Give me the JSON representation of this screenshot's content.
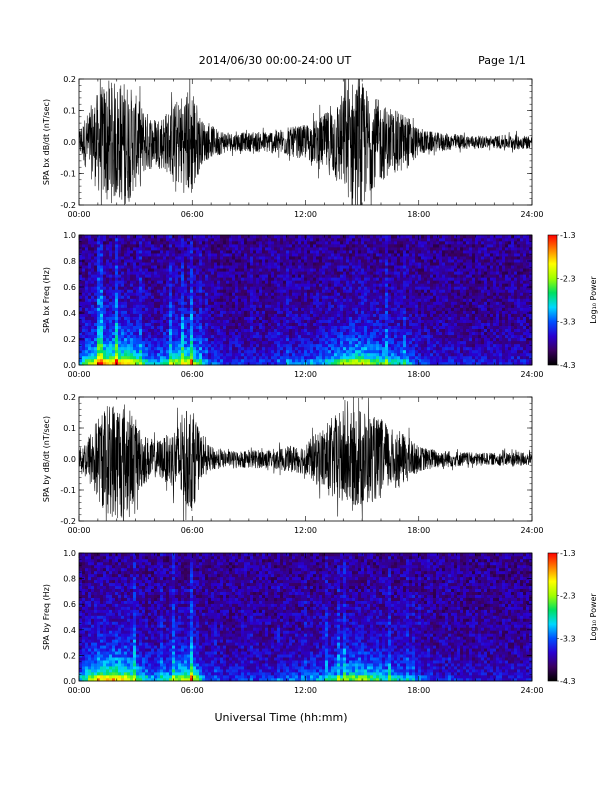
{
  "header": {
    "date_range": "2014/06/30  00:00-24:00 UT",
    "page": "Page 1/1"
  },
  "footer": {
    "xlabel": "Universal Time (hh:mm)"
  },
  "chart_data": [
    {
      "type": "line",
      "ylabel": "SPA bx dB/dt (nT/sec)",
      "xlim": [
        0,
        24
      ],
      "ylim": [
        -0.2,
        0.2
      ],
      "x_ticks": [
        "00:00",
        "06:00",
        "12:00",
        "18:00",
        "24:00"
      ],
      "y_ticks": [
        "-0.2",
        "-0.1",
        "0.0",
        "0.1",
        "0.2"
      ],
      "envelope": {
        "x": [
          0,
          0.5,
          1,
          1.5,
          2,
          2.5,
          3,
          3.5,
          4,
          4.5,
          5,
          5.5,
          6,
          6.5,
          7,
          7.5,
          8,
          9,
          10,
          11,
          12,
          12.5,
          13,
          13.5,
          14,
          14.5,
          15,
          15.5,
          16,
          16.5,
          17,
          17.5,
          18,
          19,
          20,
          21,
          22,
          23,
          24
        ],
        "amplitude": [
          0.04,
          0.1,
          0.16,
          0.2,
          0.19,
          0.2,
          0.15,
          0.1,
          0.08,
          0.09,
          0.12,
          0.16,
          0.18,
          0.07,
          0.05,
          0.04,
          0.03,
          0.03,
          0.035,
          0.045,
          0.055,
          0.07,
          0.09,
          0.12,
          0.16,
          0.2,
          0.19,
          0.15,
          0.13,
          0.1,
          0.1,
          0.08,
          0.04,
          0.03,
          0.025,
          0.02,
          0.02,
          0.025,
          0.02
        ]
      }
    },
    {
      "type": "heatmap",
      "ylabel": "SPA bx Freq (Hz)",
      "xlim": [
        0,
        24
      ],
      "ylim": [
        0,
        1.0
      ],
      "x_ticks": [
        "00:00",
        "06:00",
        "12:00",
        "18:00",
        "24:00"
      ],
      "y_ticks": [
        "0.0",
        "0.2",
        "0.4",
        "0.6",
        "0.8",
        "1.0"
      ],
      "colorbar": {
        "label": "Log₁₀ Power",
        "range": [
          -4.3,
          -1.3
        ],
        "ticks": [
          "-1.3",
          "-2.3",
          "-3.3",
          "-4.3"
        ],
        "colors": [
          "#000000",
          "#3a0060",
          "#2a00d0",
          "#0050ff",
          "#00d8ff",
          "#00e060",
          "#a0ff00",
          "#ffff00",
          "#ff8000",
          "#ff0000"
        ]
      },
      "activity": {
        "x": [
          0,
          0.5,
          1,
          1.5,
          2,
          2.5,
          3,
          3.5,
          4,
          4.5,
          5,
          5.5,
          6,
          6.5,
          7,
          7.5,
          8,
          9,
          10,
          11,
          12,
          12.5,
          13,
          13.5,
          14,
          14.5,
          15,
          15.5,
          16,
          16.5,
          17,
          17.5,
          18,
          19,
          20,
          21,
          22,
          23,
          24
        ],
        "level": [
          0.3,
          0.55,
          0.75,
          0.8,
          0.8,
          0.8,
          0.6,
          0.4,
          0.3,
          0.4,
          0.55,
          0.65,
          0.7,
          0.3,
          0.2,
          0.18,
          0.15,
          0.15,
          0.15,
          0.2,
          0.25,
          0.3,
          0.35,
          0.45,
          0.55,
          0.65,
          0.7,
          0.55,
          0.5,
          0.4,
          0.4,
          0.3,
          0.2,
          0.15,
          0.12,
          0.1,
          0.1,
          0.12,
          0.1
        ]
      }
    },
    {
      "type": "line",
      "ylabel": "SPA by dB/dt (nT/sec)",
      "xlim": [
        0,
        24
      ],
      "ylim": [
        -0.2,
        0.2
      ],
      "x_ticks": [
        "00:00",
        "06:00",
        "12:00",
        "18:00",
        "24:00"
      ],
      "y_ticks": [
        "-0.2",
        "-0.1",
        "0.0",
        "0.1",
        "0.2"
      ],
      "envelope": {
        "x": [
          0,
          0.5,
          1,
          1.5,
          2,
          2.5,
          3,
          3.5,
          4,
          4.5,
          5,
          5.5,
          6,
          6.5,
          7,
          7.5,
          8,
          9,
          10,
          11,
          12,
          12.5,
          13,
          13.5,
          14,
          14.5,
          15,
          15.5,
          16,
          16.5,
          17,
          17.5,
          18,
          19,
          20,
          21,
          22,
          23,
          24
        ],
        "amplitude": [
          0.03,
          0.08,
          0.14,
          0.18,
          0.2,
          0.19,
          0.13,
          0.08,
          0.06,
          0.07,
          0.1,
          0.15,
          0.17,
          0.06,
          0.04,
          0.03,
          0.025,
          0.03,
          0.03,
          0.04,
          0.05,
          0.08,
          0.11,
          0.14,
          0.16,
          0.15,
          0.17,
          0.14,
          0.13,
          0.1,
          0.09,
          0.07,
          0.04,
          0.03,
          0.025,
          0.02,
          0.02,
          0.025,
          0.02
        ]
      }
    },
    {
      "type": "heatmap",
      "ylabel": "SPA by Freq (Hz)",
      "xlim": [
        0,
        24
      ],
      "ylim": [
        0,
        1.0
      ],
      "x_ticks": [
        "00:00",
        "06:00",
        "12:00",
        "18:00",
        "24:00"
      ],
      "y_ticks": [
        "0.0",
        "0.2",
        "0.4",
        "0.6",
        "0.8",
        "1.0"
      ],
      "colorbar": {
        "label": "Log₁₀ Power",
        "range": [
          -4.3,
          -1.3
        ],
        "ticks": [
          "-1.3",
          "-2.3",
          "-3.3",
          "-4.3"
        ],
        "colors": [
          "#000000",
          "#3a0060",
          "#2a00d0",
          "#0050ff",
          "#00d8ff",
          "#00e060",
          "#a0ff00",
          "#ffff00",
          "#ff8000",
          "#ff0000"
        ]
      },
      "activity": {
        "x": [
          0,
          0.5,
          1,
          1.5,
          2,
          2.5,
          3,
          3.5,
          4,
          4.5,
          5,
          5.5,
          6,
          6.5,
          7,
          7.5,
          8,
          9,
          10,
          11,
          12,
          12.5,
          13,
          13.5,
          14,
          14.5,
          15,
          15.5,
          16,
          16.5,
          17,
          17.5,
          18,
          19,
          20,
          21,
          22,
          23,
          24
        ],
        "level": [
          0.3,
          0.55,
          0.75,
          0.8,
          0.8,
          0.75,
          0.55,
          0.4,
          0.3,
          0.35,
          0.5,
          0.6,
          0.7,
          0.3,
          0.2,
          0.18,
          0.15,
          0.15,
          0.15,
          0.2,
          0.25,
          0.3,
          0.35,
          0.4,
          0.5,
          0.55,
          0.6,
          0.5,
          0.45,
          0.4,
          0.35,
          0.3,
          0.2,
          0.15,
          0.12,
          0.1,
          0.1,
          0.12,
          0.1
        ]
      }
    }
  ]
}
